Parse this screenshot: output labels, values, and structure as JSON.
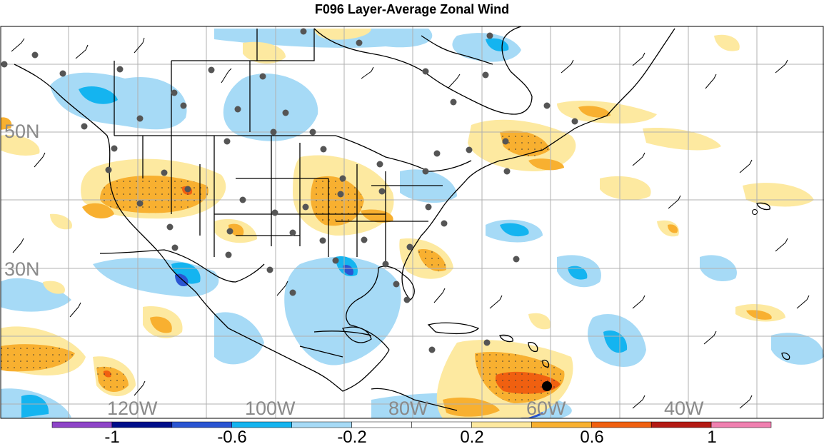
{
  "title": "F096 Layer-Average Zonal Wind",
  "grid_labels": {
    "lat": [
      "50N",
      "30N"
    ],
    "lon": [
      "120W",
      "100W",
      "80W",
      "60W",
      "40W"
    ]
  },
  "colorbar": {
    "colors": [
      "#8e44c8",
      "#000e8a",
      "#2a55d2",
      "#14b4f0",
      "#a6daf6",
      "#ffffff",
      "#ffffff",
      "#fde9a0",
      "#f8b030",
      "#f06010",
      "#b41a14",
      "#f080b0"
    ],
    "labels": [
      "-1",
      "-0.6",
      "-0.2",
      "0.2",
      "0.6",
      "1"
    ]
  },
  "colors": {
    "land_lines": "#000000",
    "grid": "#b0b0b0",
    "stations": "#555555"
  }
}
